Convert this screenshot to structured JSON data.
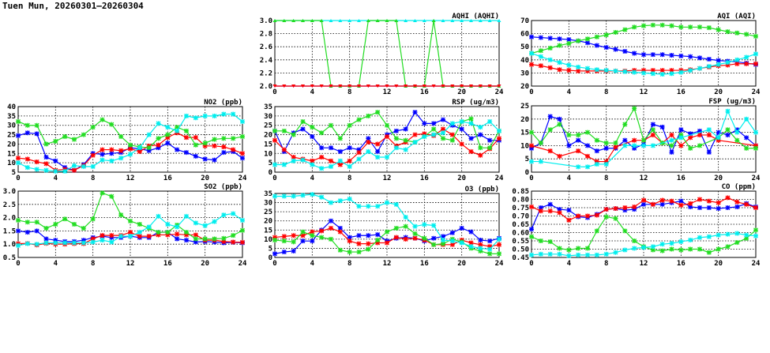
{
  "title": "Tuen Mun, 20260301–20260304",
  "colors": {
    "s1": "#0000ff",
    "s2": "#ff0000",
    "s3": "#22dd22",
    "s4": "#00eeee"
  },
  "chart_data": [
    {
      "type": "line",
      "title": "NO2 (ppb)",
      "ylim": [
        5,
        40
      ],
      "yticks": [
        "5",
        "10",
        "15",
        "20",
        "25",
        "30",
        "35",
        "40"
      ],
      "xlim": [
        0,
        24
      ],
      "xticks": [
        "0",
        "4",
        "8",
        "12",
        "16",
        "20",
        "24"
      ],
      "grid": true,
      "series": [
        {
          "name": "s1",
          "values": [
            24.5,
            26,
            25.5,
            13,
            11,
            7.5,
            6,
            9,
            15,
            14.5,
            15,
            15.5,
            18,
            17.5,
            16.5,
            18,
            20.5,
            17,
            15.5,
            13.5,
            12,
            11.5,
            15.5,
            16,
            12.5
          ]
        },
        {
          "name": "s2",
          "values": [
            12.5,
            12,
            10.5,
            9.5,
            6,
            6.5,
            6,
            8.5,
            14,
            17,
            17,
            16.5,
            17.5,
            16,
            19,
            19.5,
            23.5,
            26,
            23.5,
            23.5,
            19,
            19,
            18.5,
            17,
            15
          ]
        },
        {
          "name": "s3",
          "values": [
            32,
            30,
            30,
            20,
            21.5,
            24,
            22.5,
            25,
            29,
            33,
            30.5,
            24,
            19.5,
            18.5,
            18,
            23,
            25,
            29,
            27,
            19.5,
            20.5,
            22.5,
            23,
            23,
            24
          ]
        },
        {
          "name": "s4",
          "values": [
            10,
            7.5,
            6.5,
            6,
            5.5,
            5.5,
            8.5,
            8,
            8,
            11.5,
            11,
            12.5,
            14.5,
            18,
            25,
            31,
            29,
            27,
            35,
            34,
            35,
            35,
            36,
            36,
            32
          ]
        }
      ]
    },
    {
      "type": "line",
      "title": "SO2 (ppb)",
      "ylim": [
        0.5,
        3.0
      ],
      "yticks": [
        "0.5",
        "1.0",
        "1.5",
        "2.0",
        "2.5",
        "3.0"
      ],
      "xlim": [
        0,
        24
      ],
      "xticks": [
        "0",
        "4",
        "8",
        "12",
        "16",
        "20",
        "24"
      ],
      "grid": true,
      "series": [
        {
          "name": "s1",
          "values": [
            1.5,
            1.45,
            1.5,
            1.2,
            1.15,
            1.1,
            1.1,
            1.15,
            1.25,
            1.3,
            1.25,
            1.25,
            1.3,
            1.25,
            1.25,
            1.45,
            1.45,
            1.2,
            1.15,
            1.08,
            1.1,
            1.08,
            1.05,
            1.07,
            1.05
          ]
        },
        {
          "name": "s2",
          "values": [
            1.02,
            1.03,
            0.97,
            1.03,
            1.0,
            1.0,
            1.02,
            1.02,
            1.2,
            1.33,
            1.33,
            1.33,
            1.45,
            1.3,
            1.3,
            1.35,
            1.35,
            1.38,
            1.35,
            1.35,
            1.15,
            1.15,
            1.1,
            1.08,
            1.07
          ]
        },
        {
          "name": "s3",
          "values": [
            1.9,
            1.83,
            1.83,
            1.6,
            1.75,
            1.95,
            1.75,
            1.6,
            1.95,
            2.93,
            2.8,
            2.1,
            1.87,
            1.75,
            1.6,
            1.45,
            1.45,
            1.72,
            1.45,
            1.2,
            1.2,
            1.2,
            1.22,
            1.33,
            1.52
          ]
        },
        {
          "name": "s4",
          "values": [
            0.95,
            1.02,
            1.0,
            1.05,
            1.05,
            1.05,
            1.05,
            1.05,
            1.08,
            1.15,
            1.08,
            1.3,
            1.3,
            1.45,
            1.65,
            2.05,
            1.75,
            1.65,
            2.05,
            1.8,
            1.7,
            1.85,
            2.1,
            2.15,
            1.9
          ]
        }
      ]
    },
    {
      "type": "line",
      "title": "AQHI (AQHI)",
      "ylim": [
        2.0,
        3.0
      ],
      "yticks": [
        "2.0",
        "2.2",
        "2.4",
        "2.6",
        "2.8",
        "3.0"
      ],
      "xlim": [
        0,
        24
      ],
      "xticks": [
        "0",
        "4",
        "8",
        "12",
        "16",
        "20",
        "24"
      ],
      "grid": true,
      "marker": "triangle",
      "series": [
        {
          "name": "s4",
          "values": [
            3,
            3,
            3,
            3,
            3,
            3,
            3,
            3,
            3,
            3,
            3,
            3,
            3,
            3,
            3,
            3,
            3,
            3,
            3,
            3,
            3,
            3,
            3,
            3,
            3
          ]
        },
        {
          "name": "s3",
          "values": [
            3,
            3,
            3,
            3,
            3,
            3,
            2,
            2,
            2,
            2,
            3,
            3,
            3,
            3,
            2,
            2,
            2,
            3,
            2,
            2,
            2,
            2,
            2,
            2,
            2
          ]
        },
        {
          "name": "s1",
          "values": [
            2,
            2,
            2,
            2,
            2,
            2,
            2,
            2,
            2,
            2,
            2,
            2,
            2,
            2,
            2,
            2,
            2,
            2,
            2,
            2,
            2,
            2,
            2,
            2,
            2
          ]
        },
        {
          "name": "s2",
          "values": [
            2,
            2,
            2,
            2,
            2,
            2,
            2,
            2,
            2,
            2,
            2,
            2,
            2,
            2,
            2,
            2,
            2,
            2,
            2,
            2,
            2,
            2,
            2,
            2,
            2
          ]
        }
      ]
    },
    {
      "type": "line",
      "title": "RSP (ug/m3)",
      "ylim": [
        0,
        35
      ],
      "yticks": [
        "0",
        "5",
        "10",
        "15",
        "20",
        "25",
        "30",
        "35"
      ],
      "xlim": [
        0,
        24
      ],
      "xticks": [
        "0",
        "4",
        "8",
        "12",
        "16",
        "20",
        "24"
      ],
      "grid": true,
      "series": [
        {
          "name": "s1",
          "values": [
            22,
            11,
            21,
            23,
            19,
            13,
            13,
            11,
            13,
            12,
            18,
            11,
            20,
            22,
            23,
            32,
            26,
            26,
            28,
            25,
            23,
            18,
            20,
            17,
            17
          ]
        },
        {
          "name": "s2",
          "values": [
            17,
            12,
            8,
            7,
            6,
            8,
            6,
            4,
            6,
            10.5,
            16,
            15,
            19,
            14,
            16,
            20,
            20.5,
            19.5,
            23,
            20,
            15,
            11,
            9,
            12.5,
            18
          ]
        },
        {
          "name": "s3",
          "values": [
            22,
            22,
            20,
            27,
            24,
            21,
            25,
            18,
            25,
            28,
            30,
            32,
            25,
            18,
            17,
            16,
            19,
            23,
            18,
            17,
            27,
            28.5,
            13,
            13,
            22
          ]
        },
        {
          "name": "s4",
          "values": [
            4,
            4,
            6,
            6.5,
            4,
            2,
            3,
            6,
            3,
            7,
            11,
            8,
            8,
            13,
            12,
            16,
            19,
            20,
            21,
            26,
            27,
            26,
            24,
            27,
            22
          ]
        }
      ]
    },
    {
      "type": "line",
      "title": "O3 (ppb)",
      "ylim": [
        0,
        35
      ],
      "yticks": [
        "0",
        "5",
        "10",
        "15",
        "20",
        "25",
        "30",
        "35"
      ],
      "xlim": [
        0,
        24
      ],
      "xticks": [
        "0",
        "4",
        "8",
        "12",
        "16",
        "20",
        "24"
      ],
      "grid": true,
      "series": [
        {
          "name": "s1",
          "values": [
            2,
            3,
            3.5,
            9,
            9,
            15,
            20,
            16,
            11,
            12,
            12,
            12.5,
            9,
            10.5,
            11,
            10.5,
            9,
            10.5,
            11.5,
            13.5,
            16,
            14,
            9.5,
            9,
            10.5
          ]
        },
        {
          "name": "s2",
          "values": [
            11,
            11.5,
            12,
            12,
            14,
            14.5,
            16,
            14,
            9,
            7.5,
            7.5,
            8,
            8,
            11,
            10,
            10.5,
            9.5,
            7,
            7,
            7,
            9.5,
            8,
            7,
            6,
            7
          ]
        },
        {
          "name": "s3",
          "values": [
            9.5,
            9,
            8.5,
            14,
            12,
            11,
            10,
            4,
            3,
            3,
            4.5,
            9.5,
            14,
            16,
            17,
            13,
            10.5,
            7,
            7.5,
            10,
            8.5,
            5,
            3.5,
            2,
            2
          ]
        },
        {
          "name": "s4",
          "values": [
            33.5,
            33.5,
            33.5,
            34,
            34.5,
            33,
            30,
            31,
            32,
            28,
            28,
            28,
            30,
            29,
            22,
            17,
            18,
            17.5,
            9.5,
            9,
            8,
            6,
            5,
            4.5,
            10
          ]
        }
      ]
    },
    {
      "type": "line",
      "title": "AQI (AQI)",
      "ylim": [
        20,
        70
      ],
      "yticks": [
        "20",
        "30",
        "40",
        "50",
        "60",
        "70"
      ],
      "xlim": [
        0,
        24
      ],
      "xticks": [
        "0",
        "4",
        "8",
        "12",
        "16",
        "20",
        "24"
      ],
      "grid": true,
      "series": [
        {
          "name": "s1",
          "values": [
            57.5,
            57,
            56.5,
            56,
            55.5,
            54.5,
            53,
            51,
            49.5,
            48,
            46.5,
            45,
            44,
            44,
            44,
            43.5,
            43,
            42.5,
            41.5,
            40.5,
            39.5,
            39,
            38.5,
            37.5,
            36.5
          ]
        },
        {
          "name": "s2",
          "values": [
            36.5,
            35.5,
            34,
            32.5,
            32,
            31.5,
            31.5,
            31.5,
            31.5,
            31.5,
            31.5,
            32,
            32,
            32,
            32,
            32,
            32,
            32.5,
            33.5,
            34.5,
            35.5,
            36,
            37,
            37,
            37
          ]
        },
        {
          "name": "s3",
          "values": [
            45,
            47,
            49,
            51,
            52.5,
            54.5,
            56,
            57.5,
            59,
            61,
            63,
            65,
            66,
            66.5,
            66.5,
            66,
            65,
            65,
            65,
            64.5,
            63,
            61.5,
            60.5,
            59.5,
            58
          ]
        },
        {
          "name": "s4",
          "values": [
            45,
            42.5,
            40,
            38,
            36,
            34.5,
            33.5,
            32.5,
            32,
            31.5,
            31,
            30.5,
            30,
            29.5,
            29,
            29.5,
            30.5,
            32,
            33.5,
            35,
            36.5,
            38,
            40,
            42,
            44.5
          ]
        }
      ]
    },
    {
      "type": "line",
      "title": "FSP (ug/m3)",
      "ylim": [
        0,
        25
      ],
      "yticks": [
        "0",
        "5",
        "10",
        "15",
        "20",
        "25"
      ],
      "xlim": [
        0,
        24
      ],
      "xticks": [
        "0",
        "4",
        "8",
        "12",
        "16",
        "20",
        "24"
      ],
      "grid": true,
      "series": [
        {
          "name": "s1",
          "values": [
            9,
            11,
            21,
            20,
            10,
            12,
            10,
            8,
            9,
            9,
            12,
            9,
            10.5,
            18,
            17,
            7.5,
            16,
            14.5,
            15.5,
            7.5,
            15,
            14,
            16,
            13,
            10
          ]
        },
        {
          "name": "s2",
          "values": [
            10,
            null,
            8,
            6,
            null,
            8,
            6,
            4,
            4,
            9.5,
            null,
            12,
            12,
            14,
            11,
            14,
            10,
            13,
            14,
            14,
            12,
            null,
            null,
            null,
            10
          ]
        },
        {
          "name": "s3",
          "values": [
            15,
            11,
            16,
            18,
            14,
            14,
            15,
            12,
            11,
            11,
            18,
            24,
            12,
            16,
            11,
            10,
            14,
            9,
            10,
            null,
            13,
            16,
            12,
            9,
            9
          ]
        },
        {
          "name": "s4",
          "values": [
            4,
            4,
            null,
            null,
            null,
            2,
            2,
            3,
            3,
            null,
            10,
            10,
            10,
            10,
            null,
            12,
            13,
            null,
            null,
            16,
            13,
            23,
            15,
            20,
            15
          ]
        }
      ]
    },
    {
      "type": "line",
      "title": "CO (ppm)",
      "ylim": [
        0.45,
        0.85
      ],
      "yticks": [
        "0.45",
        "0.50",
        "0.55",
        "0.60",
        "0.65",
        "0.70",
        "0.75",
        "0.80",
        "0.85"
      ],
      "xlim": [
        0,
        24
      ],
      "xticks": [
        "0",
        "4",
        "8",
        "12",
        "16",
        "20",
        "24"
      ],
      "grid": true,
      "series": [
        {
          "name": "s1",
          "values": [
            0.62,
            0.75,
            0.77,
            0.74,
            0.735,
            0.695,
            0.69,
            0.71,
            0.74,
            0.745,
            0.735,
            0.74,
            0.77,
            0.77,
            0.77,
            0.78,
            0.79,
            0.755,
            0.75,
            0.75,
            0.745,
            0.75,
            0.755,
            0.775,
            0.755
          ]
        },
        {
          "name": "s2",
          "values": [
            0.755,
            0.73,
            0.73,
            0.72,
            0.675,
            0.7,
            0.7,
            0.705,
            0.74,
            0.745,
            0.75,
            0.755,
            0.795,
            0.77,
            0.795,
            0.79,
            0.765,
            0.775,
            0.8,
            0.79,
            0.78,
            0.81,
            0.785,
            0.77,
            0.75
          ]
        },
        {
          "name": "s3",
          "values": [
            0.575,
            0.55,
            0.545,
            0.505,
            0.495,
            0.505,
            0.505,
            0.61,
            0.695,
            0.685,
            0.61,
            0.55,
            0.515,
            0.495,
            0.49,
            0.5,
            0.495,
            0.5,
            0.5,
            0.48,
            0.5,
            0.515,
            0.54,
            0.565,
            0.615
          ]
        },
        {
          "name": "s4",
          "values": [
            0.465,
            0.47,
            0.47,
            0.47,
            0.46,
            0.465,
            0.465,
            0.465,
            0.47,
            0.48,
            0.495,
            0.505,
            0.51,
            0.515,
            0.53,
            0.535,
            0.545,
            0.555,
            0.57,
            0.575,
            0.585,
            0.59,
            0.595,
            0.585,
            0.58
          ]
        }
      ]
    }
  ]
}
